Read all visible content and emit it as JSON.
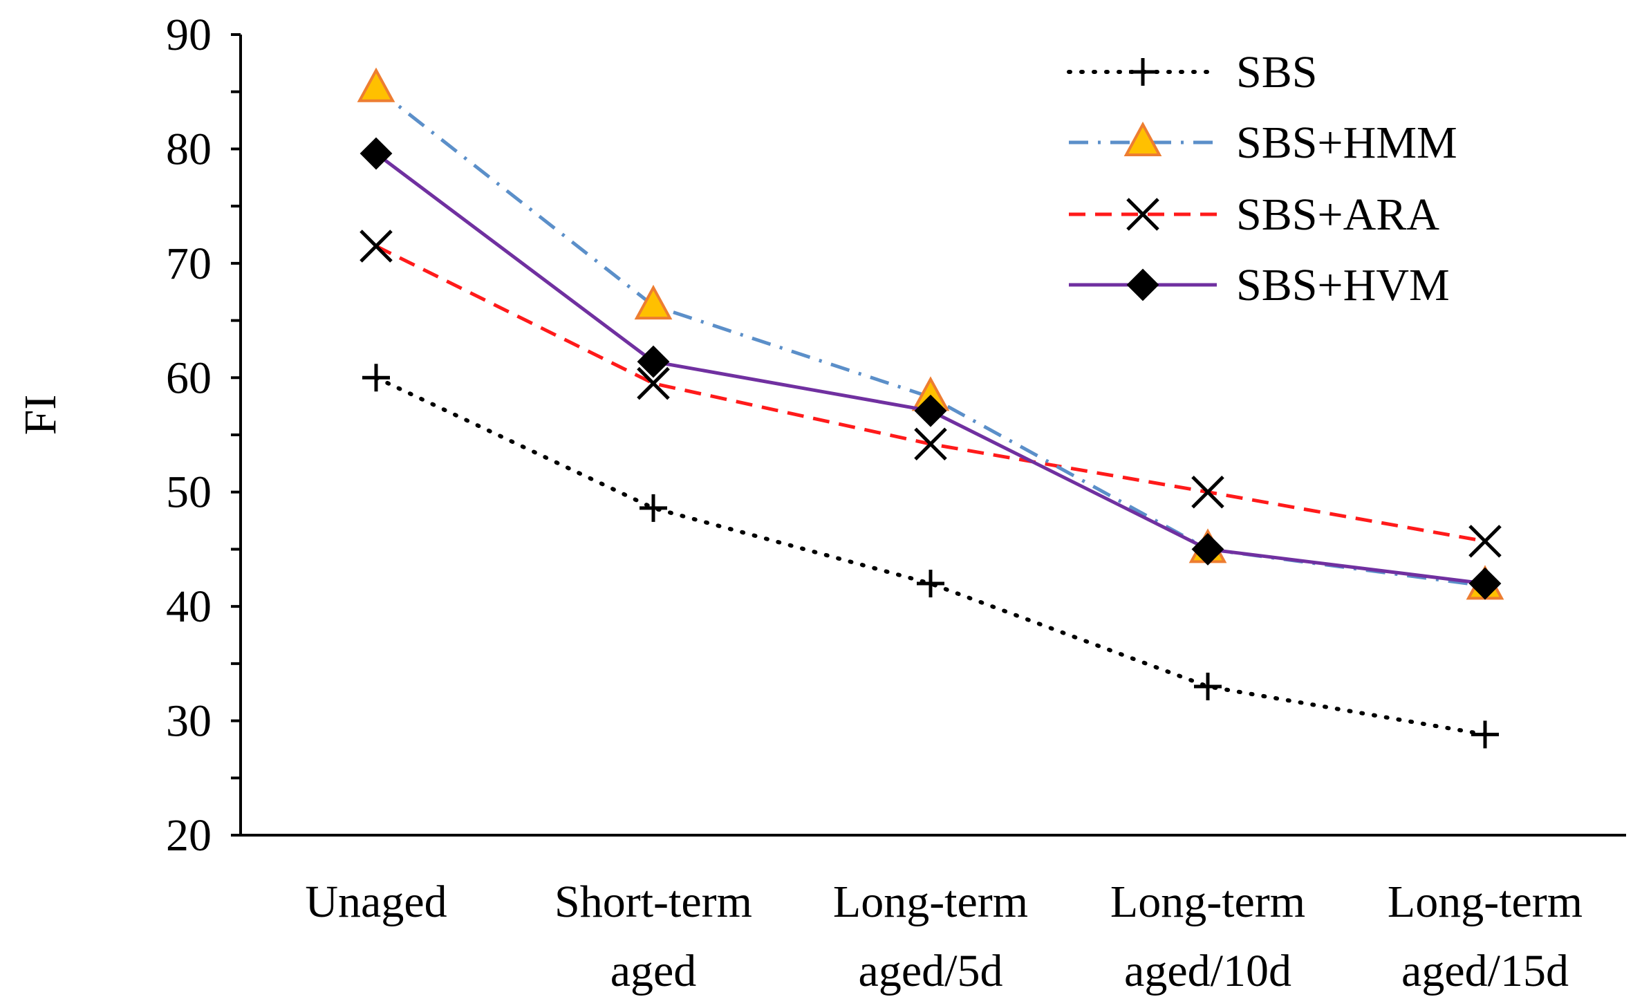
{
  "chart_data": {
    "type": "line",
    "title": "",
    "xlabel": "",
    "ylabel": "FI",
    "ylim": [
      20,
      90
    ],
    "yticks": [
      20,
      30,
      40,
      50,
      60,
      70,
      80,
      90
    ],
    "grid": false,
    "legend_position": "top-right",
    "categories": [
      [
        "Unaged"
      ],
      [
        "Short-term",
        "aged"
      ],
      [
        "Long-term",
        "aged/5d"
      ],
      [
        "Long-term",
        "aged/10d"
      ],
      [
        "Long-term",
        "aged/15d"
      ]
    ],
    "series": [
      {
        "name": "SBS",
        "values": [
          60,
          48.6,
          42,
          33,
          28.8
        ],
        "color": "#000000",
        "dash": "dotted",
        "marker": "plus"
      },
      {
        "name": "SBS+HMM",
        "values": [
          85.3,
          66.3,
          58.3,
          45,
          41.8
        ],
        "color": "#5b8fc9",
        "dash": "dashdot",
        "marker": "triangle"
      },
      {
        "name": "SBS+ARA",
        "values": [
          71.5,
          59.5,
          54.2,
          50,
          45.7
        ],
        "color": "#ff1a1a",
        "dash": "dashed",
        "marker": "x"
      },
      {
        "name": "SBS+HVM",
        "values": [
          79.6,
          61.4,
          57.1,
          45,
          42
        ],
        "color": "#7030a0",
        "dash": "solid",
        "marker": "diamond"
      }
    ]
  }
}
